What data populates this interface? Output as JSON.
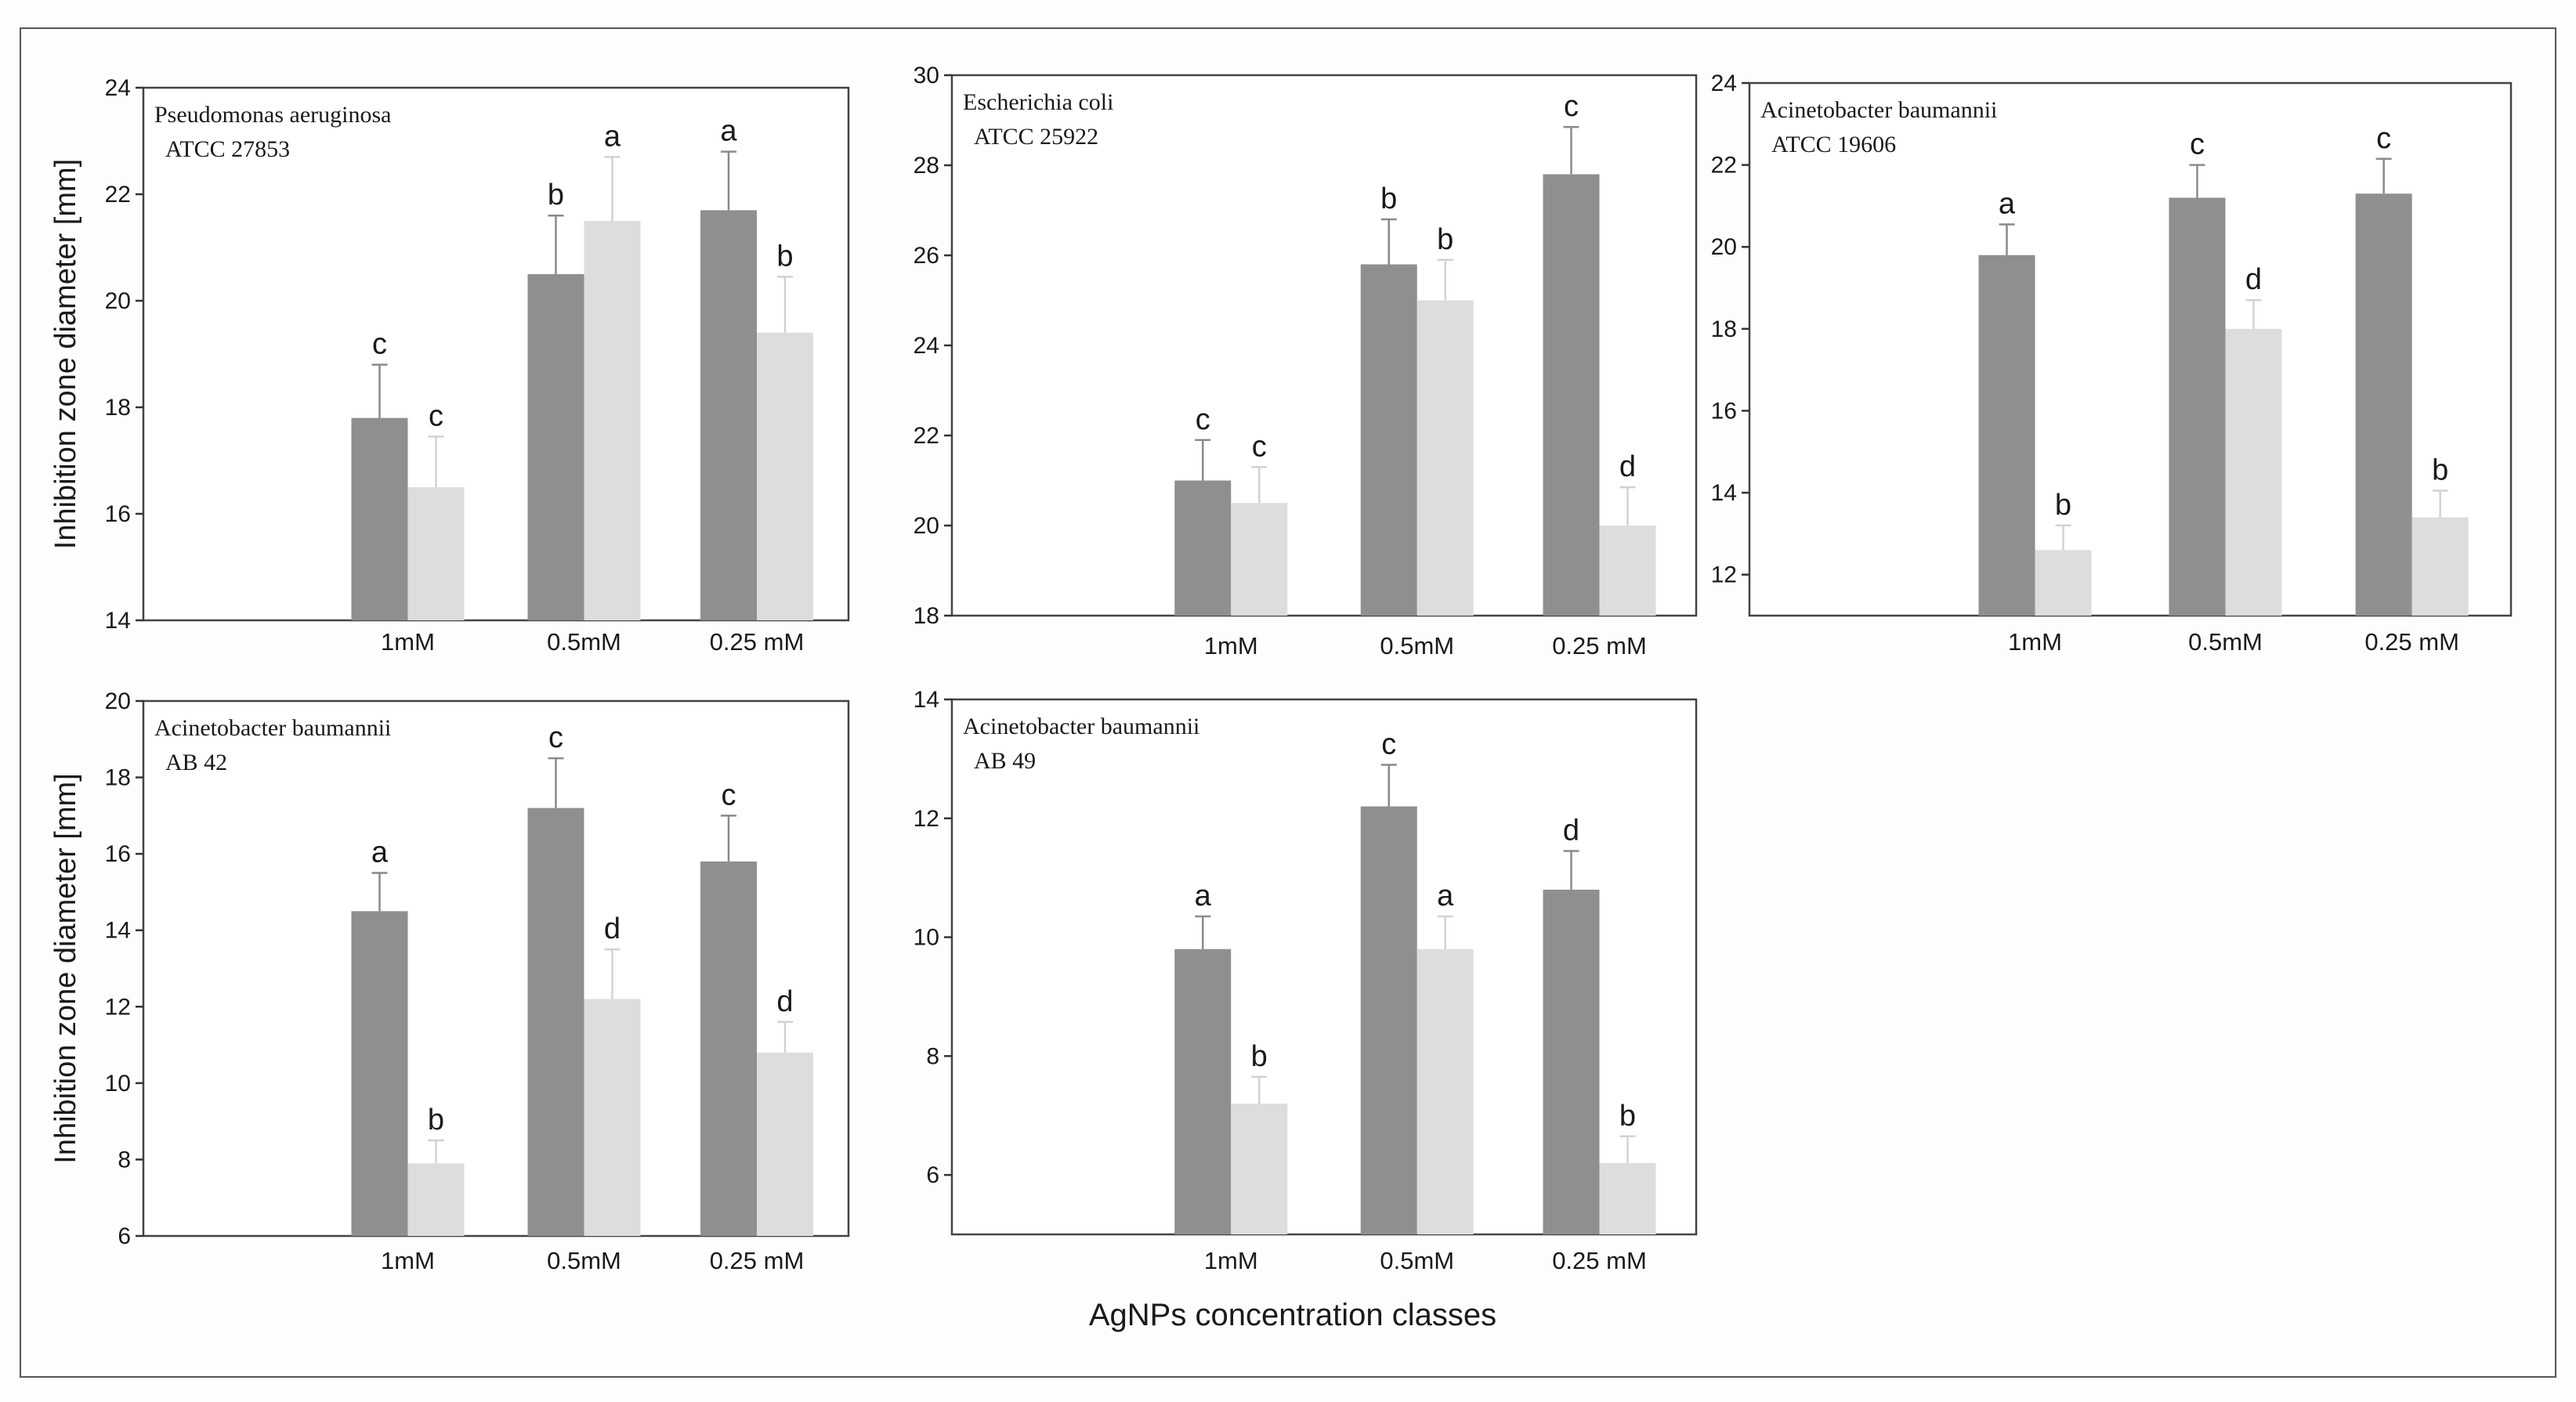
{
  "figure": {
    "xlabel": "AgNPs concentration classes",
    "ylabel": "Inhibition zone diameter [mm]",
    "colors": {
      "series_a": "#8f8f8f",
      "series_b": "#dcdddd",
      "error_a": "#8a8a8a",
      "error_b": "#d2d2d2"
    }
  },
  "chart_data": [
    {
      "type": "bar",
      "species": "Pseudomonas aeruginosa",
      "strain": "ATCC 27853",
      "categories": [
        "1mM",
        "0.5mM",
        "0.25 mM"
      ],
      "ylim": [
        14,
        24
      ],
      "yticks": [
        14,
        16,
        18,
        20,
        22,
        24
      ],
      "ylabel": "Inhibition zone diameter [mm]",
      "series": [
        {
          "name": "dark",
          "values": [
            17.8,
            20.5,
            21.7
          ],
          "errors": [
            1.0,
            1.1,
            1.1
          ],
          "letters": [
            "c",
            "b",
            "a"
          ]
        },
        {
          "name": "light",
          "values": [
            16.5,
            21.5,
            19.4
          ],
          "errors": [
            0.95,
            1.2,
            1.05
          ],
          "letters": [
            "c",
            "a",
            "b"
          ]
        }
      ]
    },
    {
      "type": "bar",
      "species": "Escherichia coli",
      "strain": "ATCC 25922",
      "categories": [
        "1mM",
        "0.5mM",
        "0.25 mM"
      ],
      "ylim": [
        18,
        30
      ],
      "yticks": [
        18,
        20,
        22,
        24,
        26,
        28,
        30
      ],
      "ylabel": "",
      "series": [
        {
          "name": "dark",
          "values": [
            21.0,
            25.8,
            27.8
          ],
          "errors": [
            0.9,
            1.0,
            1.05
          ],
          "letters": [
            "c",
            "b",
            "c"
          ]
        },
        {
          "name": "light",
          "values": [
            20.5,
            25.0,
            20.0
          ],
          "errors": [
            0.8,
            0.9,
            0.85
          ],
          "letters": [
            "c",
            "b",
            "d"
          ]
        }
      ]
    },
    {
      "type": "bar",
      "species": "Acinetobacter baumannii",
      "strain": "ATCC 19606",
      "categories": [
        "1mM",
        "0.5mM",
        "0.25 mM"
      ],
      "ylim": [
        11.0,
        24
      ],
      "yticks": [
        12,
        14,
        16,
        18,
        20,
        22,
        24
      ],
      "ylabel": "",
      "series": [
        {
          "name": "dark",
          "values": [
            19.8,
            21.2,
            21.3
          ],
          "errors": [
            0.75,
            0.8,
            0.85
          ],
          "letters": [
            "a",
            "c",
            "c"
          ]
        },
        {
          "name": "light",
          "values": [
            12.6,
            18.0,
            13.4
          ],
          "errors": [
            0.6,
            0.7,
            0.65
          ],
          "letters": [
            "b",
            "d",
            "b"
          ]
        }
      ]
    },
    {
      "type": "bar",
      "species": "Acinetobacter baumannii",
      "strain": "AB 42",
      "categories": [
        "1mM",
        "0.5mM",
        "0.25 mM"
      ],
      "ylim": [
        6,
        20
      ],
      "yticks": [
        6,
        8,
        10,
        12,
        14,
        16,
        18,
        20
      ],
      "ylabel": "Inhibition zone diameter [mm]",
      "series": [
        {
          "name": "dark",
          "values": [
            14.5,
            17.2,
            15.8
          ],
          "errors": [
            1.0,
            1.3,
            1.2
          ],
          "letters": [
            "a",
            "c",
            "c"
          ]
        },
        {
          "name": "light",
          "values": [
            7.9,
            12.2,
            10.8
          ],
          "errors": [
            0.6,
            1.3,
            0.8
          ],
          "letters": [
            "b",
            "d",
            "d"
          ]
        }
      ]
    },
    {
      "type": "bar",
      "species": "Acinetobacter baumannii",
      "strain": "AB 49",
      "categories": [
        "1mM",
        "0.5mM",
        "0.25 mM"
      ],
      "ylim": [
        5,
        14
      ],
      "yticks": [
        6,
        8,
        10,
        12,
        14
      ],
      "ylabel": "",
      "series": [
        {
          "name": "dark",
          "values": [
            9.8,
            12.2,
            10.8
          ],
          "errors": [
            0.55,
            0.7,
            0.65
          ],
          "letters": [
            "a",
            "c",
            "d"
          ]
        },
        {
          "name": "light",
          "values": [
            7.2,
            9.8,
            6.2
          ],
          "errors": [
            0.45,
            0.55,
            0.45
          ],
          "letters": [
            "b",
            "a",
            "b"
          ]
        }
      ]
    }
  ]
}
